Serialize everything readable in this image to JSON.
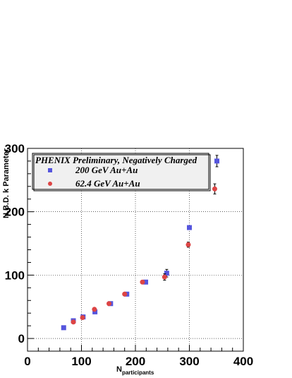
{
  "chart_data": {
    "type": "scatter",
    "title": "",
    "xlabel": {
      "main": "N",
      "sub": "participants"
    },
    "ylabel": "N.B.D. k Parameter",
    "xlim": [
      0,
      400
    ],
    "ylim": [
      -20,
      300
    ],
    "x_ticks": [
      "0",
      "100",
      "200",
      "300",
      "400"
    ],
    "y_ticks": [
      "0",
      "100",
      "200",
      "300"
    ],
    "grid": true,
    "legend": {
      "placement": "top-left",
      "title": "PHENIX Preliminary, Negatively Charged",
      "entries": [
        "200 GeV Au+Au",
        "62.4 GeV Au+Au"
      ]
    },
    "series": [
      {
        "name": "200 GeV Au+Au",
        "marker": "square",
        "color": "#5555dd",
        "points": [
          {
            "x": 67,
            "y": 17,
            "err": 0
          },
          {
            "x": 85,
            "y": 28,
            "err": 0
          },
          {
            "x": 103,
            "y": 34,
            "err": 0
          },
          {
            "x": 125,
            "y": 42,
            "err": 0
          },
          {
            "x": 154,
            "y": 55,
            "err": 0
          },
          {
            "x": 184,
            "y": 70,
            "err": 0
          },
          {
            "x": 219,
            "y": 89,
            "err": 0
          },
          {
            "x": 258,
            "y": 103,
            "err": 6
          },
          {
            "x": 300,
            "y": 175,
            "err": 0
          },
          {
            "x": 351,
            "y": 280,
            "err": 9
          }
        ]
      },
      {
        "name": "62.4 GeV Au+Au",
        "marker": "circle",
        "color": "#dd4444",
        "points": [
          {
            "x": 85,
            "y": 26,
            "err": 0
          },
          {
            "x": 102,
            "y": 33,
            "err": 0
          },
          {
            "x": 124,
            "y": 46,
            "err": 0
          },
          {
            "x": 151,
            "y": 55,
            "err": 0
          },
          {
            "x": 180,
            "y": 70,
            "err": 0
          },
          {
            "x": 213,
            "y": 89,
            "err": 0
          },
          {
            "x": 254,
            "y": 97,
            "err": 5
          },
          {
            "x": 298,
            "y": 148,
            "err": 4
          },
          {
            "x": 347,
            "y": 236,
            "err": 8
          }
        ]
      }
    ]
  }
}
